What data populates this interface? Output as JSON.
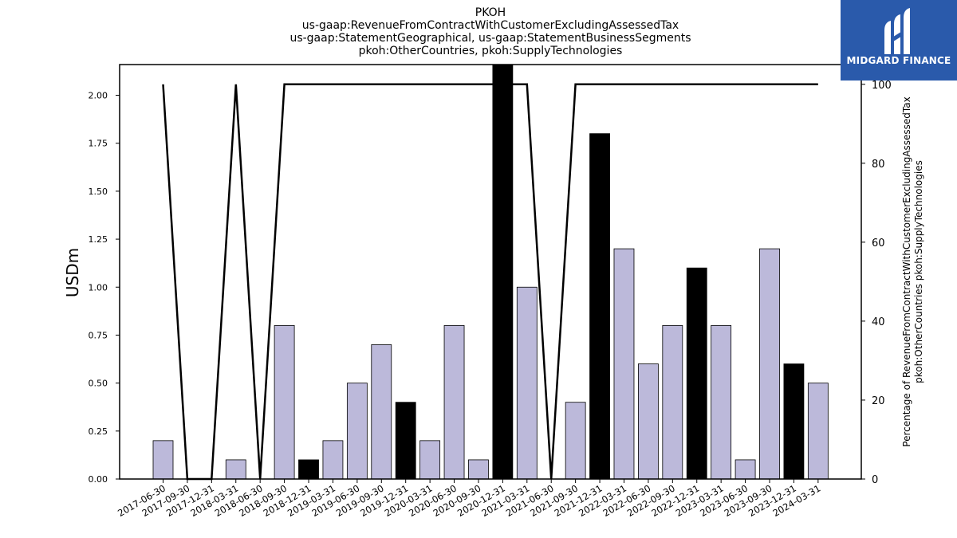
{
  "title_lines": [
    "PKOH",
    "us-gaap:RevenueFromContractWithCustomerExcludingAssessedTax",
    "us-gaap:StatementGeographical, us-gaap:StatementBusinessSegments",
    "pkoh:OtherCountries, pkoh:SupplyTechnologies"
  ],
  "logo": {
    "text": "MIDGARD FINANCE",
    "background": "#2a5aab"
  },
  "chart_data": {
    "type": "bar",
    "categories": [
      "2017-06-30",
      "2017-09-30",
      "2017-12-31",
      "2018-03-31",
      "2018-06-30",
      "2018-09-30",
      "2018-12-31",
      "2019-03-31",
      "2019-06-30",
      "2019-09-30",
      "2019-12-31",
      "2020-03-31",
      "2020-06-30",
      "2020-09-30",
      "2020-12-31",
      "2021-03-31",
      "2021-06-30",
      "2021-09-30",
      "2021-12-31",
      "2022-03-31",
      "2022-06-30",
      "2022-09-30",
      "2022-12-31",
      "2023-03-31",
      "2023-06-30",
      "2023-09-30",
      "2023-12-31",
      "2024-03-31"
    ],
    "series": [
      {
        "axis": "left",
        "type": "bar",
        "values": [
          0.2,
          0.0,
          0.0,
          0.1,
          0.0,
          0.8,
          0.1,
          0.2,
          0.5,
          0.7,
          0.4,
          0.2,
          0.8,
          0.1,
          2.2,
          1.0,
          0.0,
          0.4,
          1.8,
          1.2,
          0.6,
          0.8,
          1.1,
          0.8,
          0.1,
          1.2,
          0.6,
          0.5
        ],
        "bar_colors": [
          "#bcb9da",
          "#bcb9da",
          "#bcb9da",
          "#bcb9da",
          "#bcb9da",
          "#bcb9da",
          "#000000",
          "#bcb9da",
          "#bcb9da",
          "#bcb9da",
          "#000000",
          "#bcb9da",
          "#bcb9da",
          "#bcb9da",
          "#000000",
          "#bcb9da",
          "#bcb9da",
          "#bcb9da",
          "#000000",
          "#bcb9da",
          "#bcb9da",
          "#bcb9da",
          "#000000",
          "#bcb9da",
          "#bcb9da",
          "#bcb9da",
          "#000000",
          "#bcb9da"
        ]
      },
      {
        "axis": "right",
        "type": "line",
        "color": "#000000",
        "values": [
          100,
          0,
          0,
          100,
          0,
          100,
          100,
          100,
          100,
          100,
          100,
          100,
          100,
          100,
          100,
          100,
          0,
          100,
          100,
          100,
          100,
          100,
          100,
          100,
          100,
          100,
          100,
          100
        ]
      }
    ],
    "ylabel": "USDm",
    "ylim": [
      0,
      2.16
    ],
    "yticks": [
      "0.00",
      "0.25",
      "0.50",
      "0.75",
      "1.00",
      "1.25",
      "1.50",
      "1.75",
      "2.00"
    ],
    "y2label_lines": [
      "Percentage of RevenueFromContractWithCustomerExcludingAssessedTax",
      "pkoh:OtherCountries pkoh:SupplyTechnologies"
    ],
    "y2lim": [
      0,
      105
    ],
    "y2ticks": [
      "0",
      "20",
      "40",
      "60",
      "80",
      "100"
    ],
    "grid": false,
    "legend": "none"
  }
}
